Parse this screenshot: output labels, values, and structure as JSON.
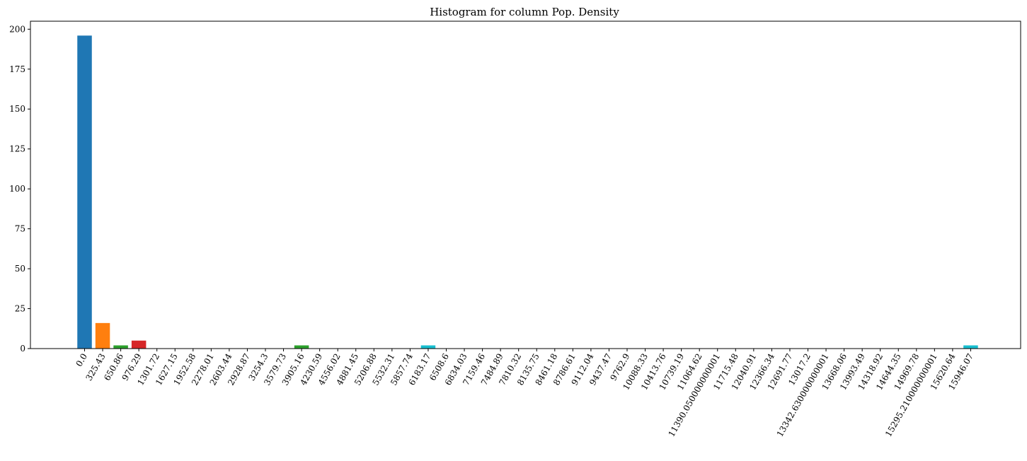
{
  "chart_data": {
    "type": "bar",
    "title": "Histogram for column Pop. Density",
    "xlabel": "",
    "ylabel": "",
    "ylim": [
      0,
      205
    ],
    "yticks": [
      "0",
      "25",
      "50",
      "75",
      "100",
      "125",
      "150",
      "175",
      "200"
    ],
    "grid": false,
    "categories": [
      "0.0",
      "325.43",
      "650.86",
      "976.29",
      "1301.72",
      "1627.15",
      "1952.58",
      "2278.01",
      "2603.44",
      "2928.87",
      "3254.3",
      "3579.73",
      "3905.16",
      "4230.59",
      "4556.02",
      "4881.45",
      "5206.88",
      "5532.31",
      "5857.74",
      "6183.17",
      "6508.6",
      "6834.03",
      "7159.46",
      "7484.89",
      "7810.32",
      "8135.75",
      "8461.18",
      "8786.61",
      "9112.04",
      "9437.47",
      "9762.9",
      "10088.33",
      "10413.76",
      "10739.19",
      "11064.62",
      "11390.050000000001",
      "11715.48",
      "12040.91",
      "12366.34",
      "12691.77",
      "13017.2",
      "13342.630000000001",
      "13668.06",
      "13993.49",
      "14318.92",
      "14644.35",
      "14969.78",
      "15295.210000000001",
      "15620.64",
      "15946.07"
    ],
    "values": [
      196,
      16,
      2,
      5,
      0,
      0,
      0,
      0,
      0,
      0,
      0,
      0,
      2,
      0,
      0,
      0,
      0,
      0,
      0,
      2,
      0,
      0,
      0,
      0,
      0,
      0,
      0,
      0,
      0,
      0,
      0,
      0,
      0,
      0,
      0,
      0,
      0,
      0,
      0,
      0,
      0,
      0,
      0,
      0,
      0,
      0,
      0,
      0,
      0,
      2
    ],
    "colors": [
      "#1f77b4",
      "#ff7f0e",
      "#2ca02c",
      "#d62728",
      "#9467bd",
      "#8c564b",
      "#e377c2",
      "#7f7f7f",
      "#bcbd22",
      "#17becf"
    ]
  }
}
